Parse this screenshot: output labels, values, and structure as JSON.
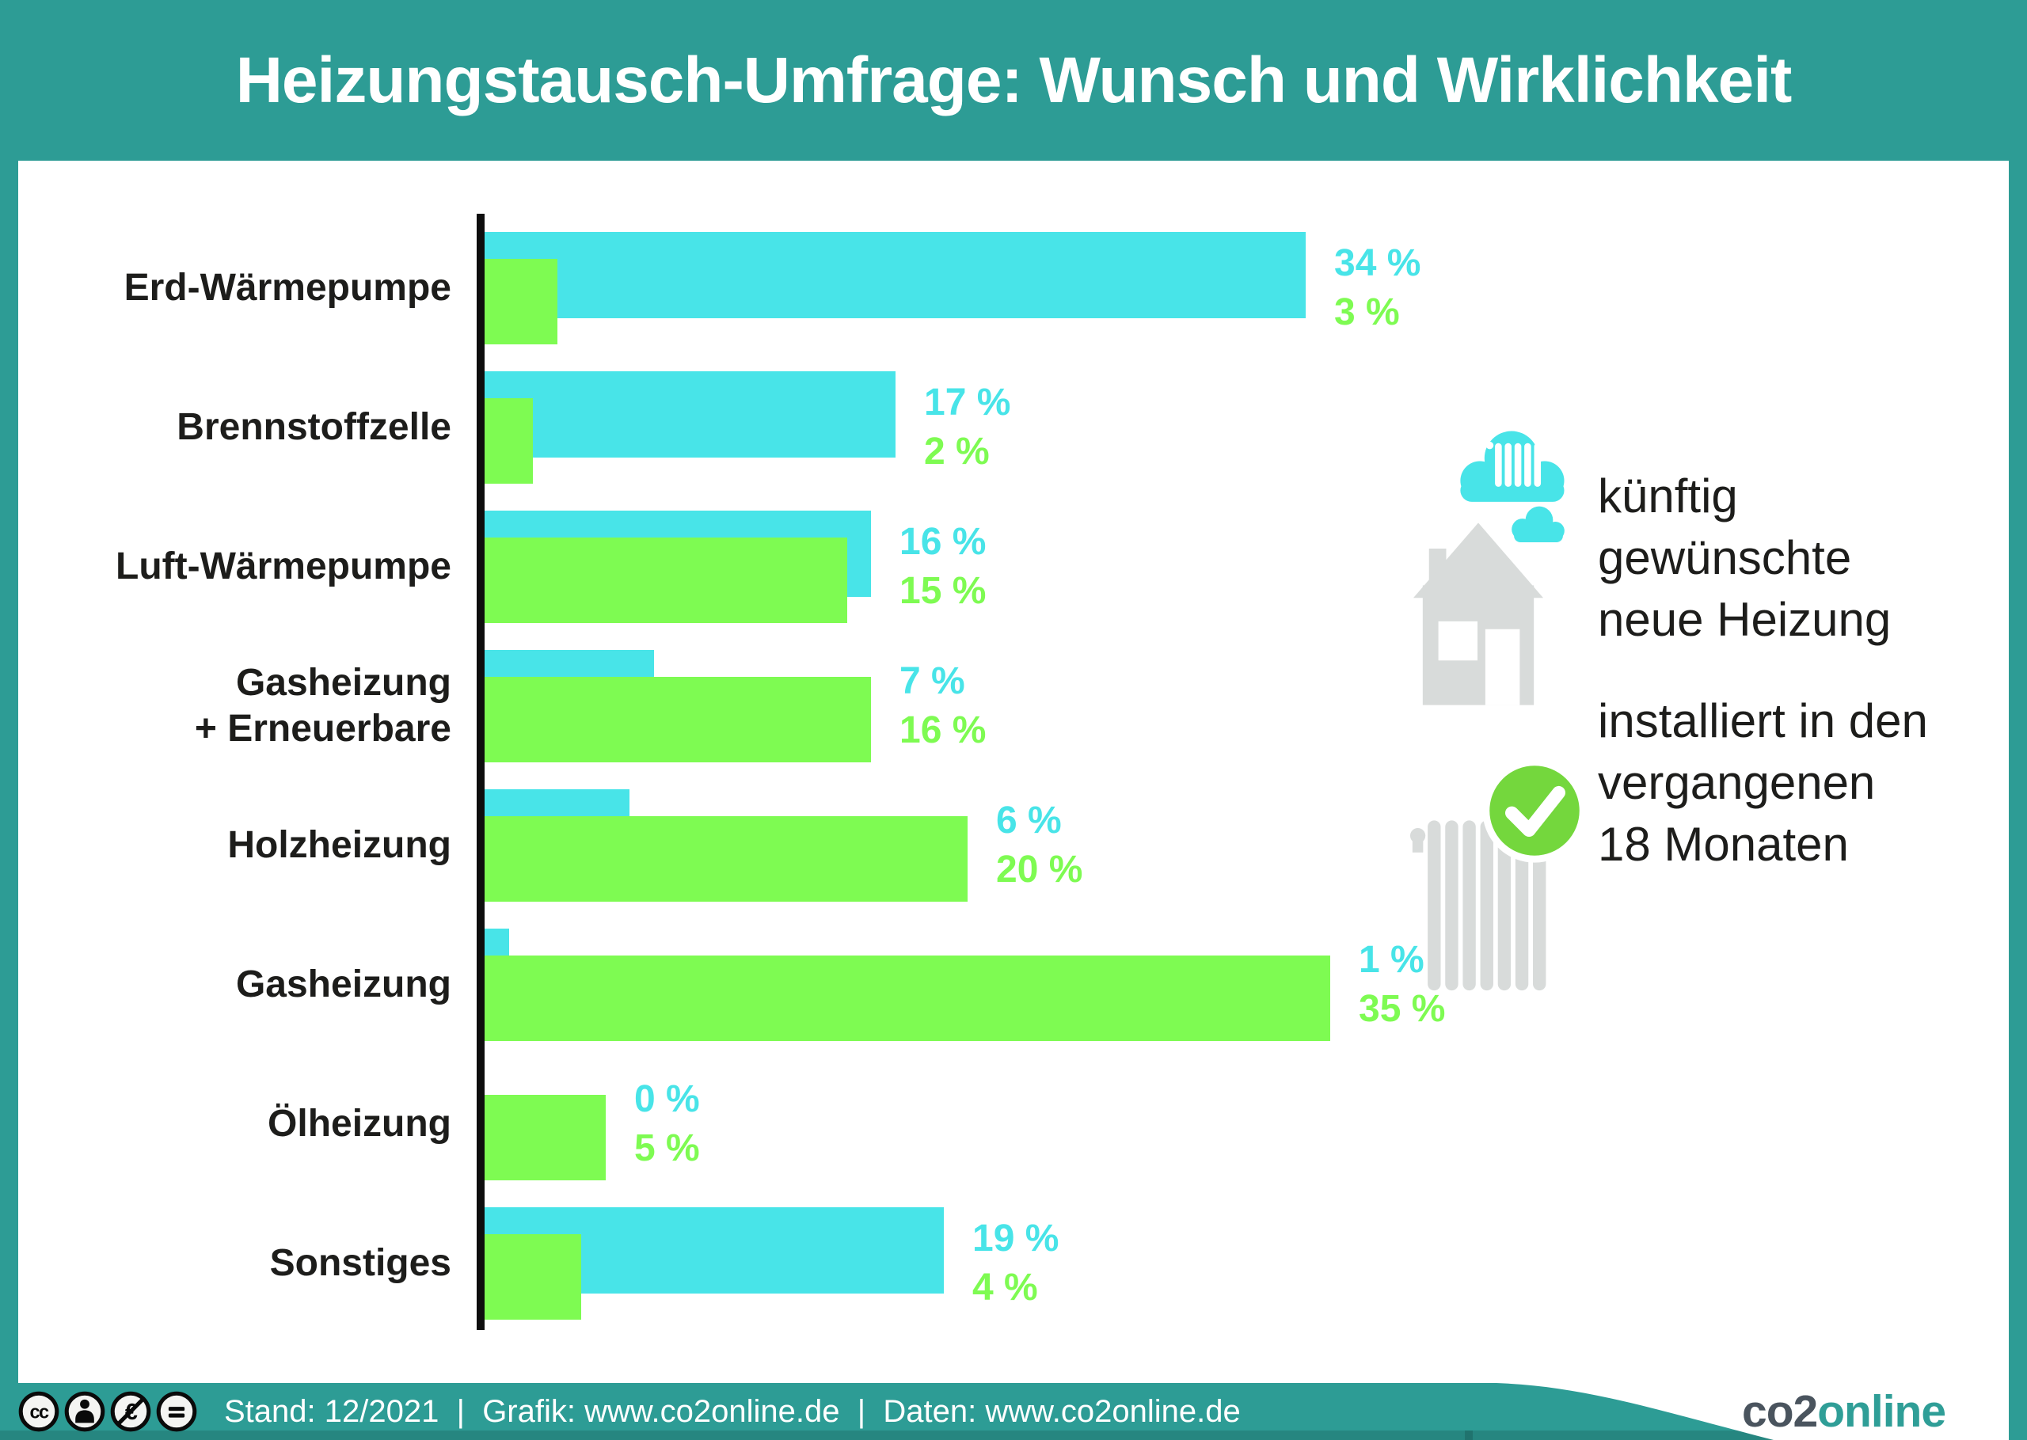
{
  "header": {
    "title": "Heizungstausch-Umfrage: Wunsch und Wirklichkeit"
  },
  "chart_data": {
    "type": "bar",
    "orientation": "horizontal",
    "unit": "%",
    "title": "Heizungstausch-Umfrage: Wunsch und Wirklichkeit",
    "categories": [
      "Erd-Wärmepumpe",
      "Brennstoffzelle",
      "Luft-Wärmepumpe",
      "Gasheizung\n+ Erneuerbare",
      "Holzheizung",
      "Gasheizung",
      "Ölheizung",
      "Sonstiges"
    ],
    "series": [
      {
        "name": "künftig gewünschte neue Heizung",
        "color": "#48e4e8",
        "values": [
          34,
          17,
          16,
          7,
          6,
          1,
          0,
          19
        ]
      },
      {
        "name": "installiert in den vergangenen 18 Monaten",
        "color": "#7efb52",
        "values": [
          3,
          2,
          15,
          16,
          20,
          35,
          5,
          4
        ]
      }
    ],
    "xlim": [
      0,
      40
    ],
    "grid": false,
    "legend_position": "right",
    "value_label_format": "{v} %"
  },
  "legend": {
    "wish": {
      "label": "künftig\ngewünschte\nneue Heizung",
      "icon": "house-with-heating-cloud"
    },
    "installed": {
      "label": "installiert in den\nvergangenen\n18 Monaten",
      "icon": "radiator-with-checkmark"
    }
  },
  "footer": {
    "license_icons": [
      "cc",
      "by",
      "nc-euro",
      "nd"
    ],
    "credits": "Stand: 12/2021  |  Grafik: www.co2online.de  |  Daten: www.co2online.de",
    "logo": {
      "co2": "co2",
      "online": "online"
    }
  },
  "colors": {
    "teal": "#2d9c95",
    "wish_cyan": "#48e4e8",
    "installed_green": "#7efb52",
    "icon_gray": "#d8dbda",
    "check_green": "#74d73d",
    "text_black": "#1d1d1b",
    "logo_slate": "#4a545e"
  }
}
